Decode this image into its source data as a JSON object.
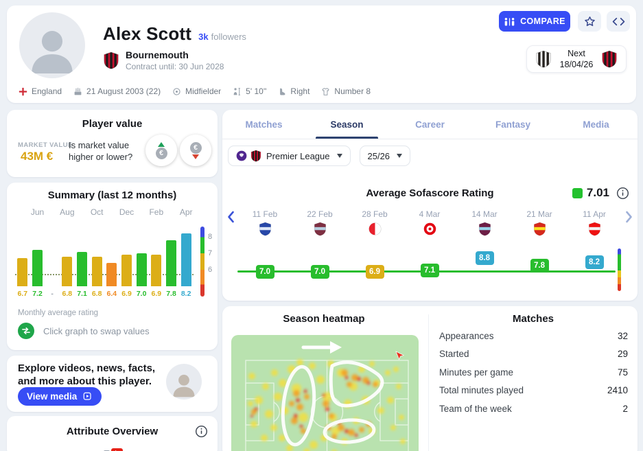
{
  "colors": {
    "accent": "#374df5",
    "rating_blue": "#34a9ce",
    "rating_green": "#28bd2d",
    "rating_yellow": "#dcae17",
    "rating_orange": "#f08a24",
    "rating_red": "#d9372c",
    "gold": "#d9a312"
  },
  "header": {
    "name": "Alex Scott",
    "followers_count": "3k",
    "followers_label": "followers",
    "team": "Bournemouth",
    "contract": "Contract until: 30 Jun 2028",
    "compare_label": "COMPARE",
    "team_crest": {
      "shape": "stripes",
      "primary": "#c8102e",
      "secondary": "#1f1b1c"
    },
    "next": {
      "label": "Next",
      "date": "18/04/26",
      "home_team": "Newcastle United",
      "home_crest": {
        "shape": "stripes",
        "primary": "#ffffff",
        "secondary": "#26221f"
      },
      "away_team": "Bournemouth",
      "away_crest": {
        "shape": "stripes",
        "primary": "#c8102e",
        "secondary": "#1f1b1c"
      }
    },
    "facts": [
      {
        "icon": "england-flag",
        "label": "England"
      },
      {
        "icon": "birthday-cake",
        "label": "21 August 2003 (22)"
      },
      {
        "icon": "position-target",
        "label": "Midfielder"
      },
      {
        "icon": "height",
        "label": "5' 10''"
      },
      {
        "icon": "foot",
        "label": "Right"
      },
      {
        "icon": "jersey",
        "label": "Number 8"
      }
    ]
  },
  "player_value": {
    "title": "Player value",
    "market_value_label": "MARKET VALUE",
    "market_value": "43M €",
    "question": "Is market value higher or lower?",
    "euro_symbol": "€"
  },
  "summary_card": {
    "title": "Summary (last 12 months)",
    "footnote": "Monthly average rating",
    "swap_hint": "Click graph to swap values"
  },
  "explore_card": {
    "text": "Explore videos, news, facts, and more about this player.",
    "button_label": "View media"
  },
  "attribute_card": {
    "title": "Attribute Overview"
  },
  "tabs": [
    "Matches",
    "Season",
    "Career",
    "Fantasy",
    "Media"
  ],
  "active_tab_index": 1,
  "filters": {
    "league_label": "Premier League",
    "season_label": "25/26",
    "league_crests": [
      {
        "shape": "circle",
        "primary": "#50268f",
        "secondary": "#ffffff"
      },
      {
        "shape": "stripes",
        "primary": "#c8102e",
        "secondary": "#1f1b1c"
      }
    ]
  },
  "rating_section": {
    "title": "Average Sofascore Rating",
    "value": "7.01"
  },
  "heatmap_card": {
    "title": "Season heatmap"
  },
  "matches_card": {
    "title": "Matches",
    "rows": [
      {
        "label": "Appearances",
        "value": "32"
      },
      {
        "label": "Started",
        "value": "29"
      },
      {
        "label": "Minutes per game",
        "value": "75"
      },
      {
        "label": "Total minutes played",
        "value": "2410"
      },
      {
        "label": "Team of the week",
        "value": "2"
      }
    ]
  },
  "chart_data": [
    {
      "type": "bar",
      "title": "Summary (last 12 months)",
      "month_labels": [
        "Jun",
        "Aug",
        "Oct",
        "Dec",
        "Feb",
        "Apr"
      ],
      "values": [
        6.7,
        7.2,
        null,
        6.8,
        7.1,
        6.8,
        6.4,
        6.9,
        7.0,
        6.9,
        7.8,
        8.2
      ],
      "value_labels": [
        "6.7",
        "7.2",
        "-",
        "6.8",
        "7.1",
        "6.8",
        "6.4",
        "6.9",
        "7.0",
        "6.9",
        "7.8",
        "8.2"
      ],
      "ylim": [
        5.0,
        8.5
      ],
      "avg_line": 7.0,
      "scale_ticks": [
        8,
        7,
        6
      ],
      "ylabel": "Monthly average rating"
    },
    {
      "type": "line",
      "title": "Average Sofascore Rating",
      "average": 7.01,
      "x": [
        "11 Feb",
        "22 Feb",
        "28 Feb",
        "4 Mar",
        "14 Mar",
        "21 Mar",
        "11 Apr"
      ],
      "values": [
        7.0,
        7.0,
        6.9,
        7.1,
        8.8,
        7.8,
        8.2
      ],
      "matches": [
        {
          "date": "11 Feb",
          "team": "Everton",
          "crest": {
            "shape": "band",
            "primary": "#2747a8",
            "secondary": "#dfe8f8"
          }
        },
        {
          "date": "22 Feb",
          "team": "West Ham United",
          "crest": {
            "shape": "band",
            "primary": "#7e2f42",
            "secondary": "#b8cfe0"
          }
        },
        {
          "date": "28 Feb",
          "team": "Sunderland",
          "crest": {
            "shape": "halfcircle",
            "primary": "#e8202c",
            "secondary": "#ffffff"
          }
        },
        {
          "date": "4 Mar",
          "team": "Brentford",
          "crest": {
            "shape": "ring",
            "primary": "#e30613",
            "secondary": "#ffffff"
          }
        },
        {
          "date": "14 Mar",
          "team": "Burnley",
          "crest": {
            "shape": "band",
            "primary": "#6c1d45",
            "secondary": "#9ad4ea"
          }
        },
        {
          "date": "21 Mar",
          "team": "Manchester United",
          "crest": {
            "shape": "band",
            "primary": "#d6281c",
            "secondary": "#fbe122"
          }
        },
        {
          "date": "11 Apr",
          "team": "Arsenal",
          "crest": {
            "shape": "band",
            "primary": "#ee1212",
            "secondary": "#f2f2f2"
          }
        }
      ]
    }
  ]
}
